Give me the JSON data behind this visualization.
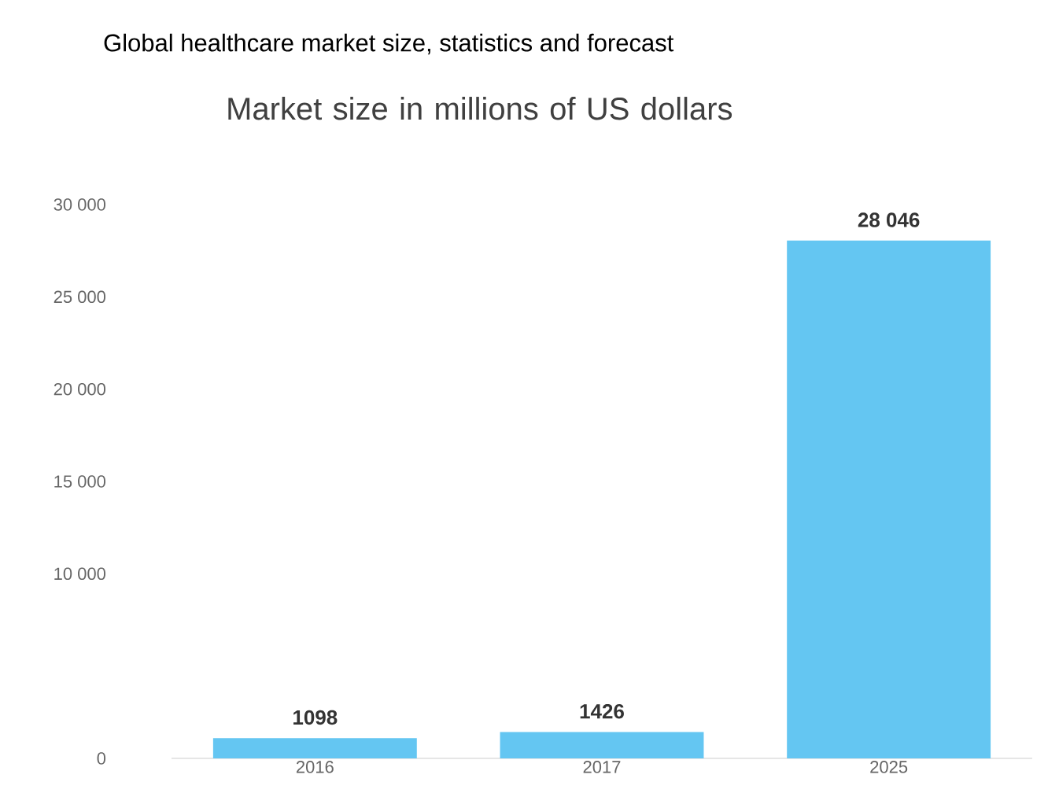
{
  "chart_data": {
    "type": "bar",
    "title": "Global healthcare market size, statistics  and forecast",
    "subtitle": "Market size in millions of US dollars",
    "categories": [
      "2016",
      "2017",
      "2025"
    ],
    "values": [
      1098,
      1426,
      28046
    ],
    "value_labels": [
      "1098",
      "1426",
      "28 046"
    ],
    "color": "#64c6f2",
    "ylim": [
      0,
      30000
    ],
    "yticks": [
      0,
      {
        "value": 10000,
        "label": "10 000"
      },
      {
        "value": 15000,
        "label": "15 000"
      },
      {
        "value": 20000,
        "label": "20 000"
      },
      {
        "value": 25000,
        "label": "25 000"
      },
      {
        "value": 30000,
        "label": "30 000"
      }
    ],
    "grid": false
  }
}
